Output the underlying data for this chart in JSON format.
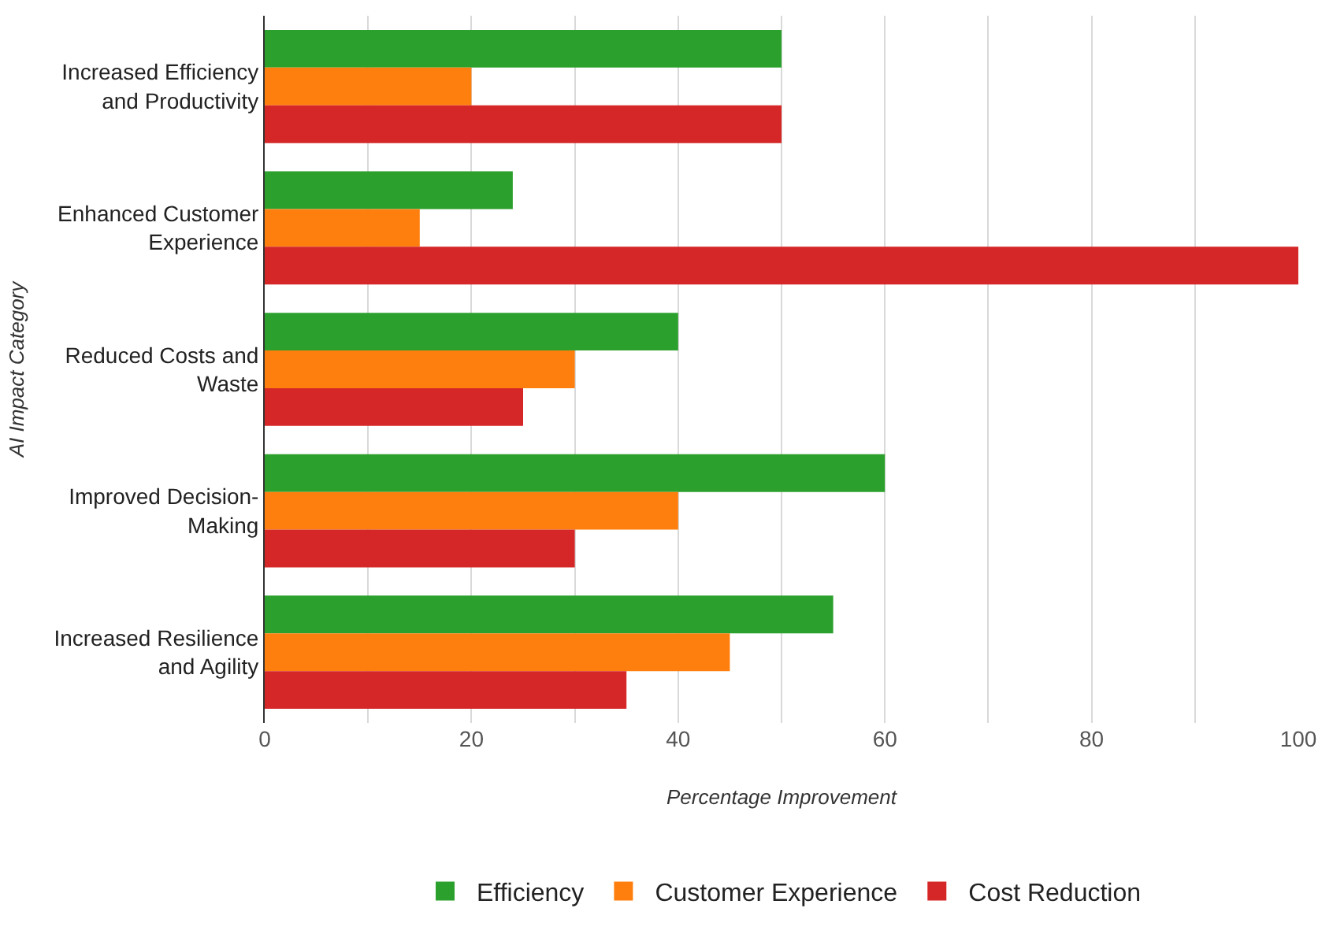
{
  "chart_data": {
    "type": "bar",
    "orientation": "horizontal",
    "xlabel": "Percentage Improvement",
    "ylabel": "AI Impact Category",
    "categories": [
      "Increased Efficiency and Productivity",
      "Enhanced Customer Experience",
      "Reduced Costs and Waste",
      "Improved Decision-Making",
      "Increased Resilience and Agility"
    ],
    "series": [
      {
        "name": "Efficiency",
        "color": "#2ca02c",
        "values": [
          50,
          24,
          40,
          60,
          55
        ]
      },
      {
        "name": "Customer Experience",
        "color": "#ff7f0e",
        "values": [
          20,
          15,
          30,
          40,
          45
        ]
      },
      {
        "name": "Cost Reduction",
        "color": "#d62728",
        "values": [
          50,
          100,
          25,
          30,
          35
        ]
      }
    ],
    "xlim": [
      0,
      100
    ],
    "xticks": [
      0,
      {
        "value": 10,
        "label": null
      },
      20,
      {
        "value": 30,
        "label": null
      },
      40,
      {
        "value": 50,
        "label": null
      },
      60,
      {
        "value": 70,
        "label": null
      },
      80,
      {
        "value": 90,
        "label": null
      },
      100
    ],
    "grid": "x",
    "legend": "bottom"
  }
}
